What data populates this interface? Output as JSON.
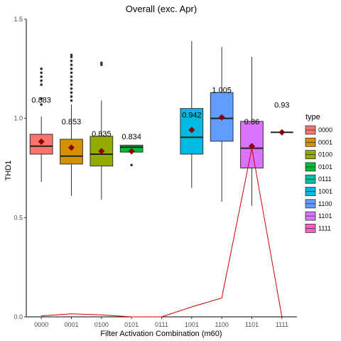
{
  "chart_data": {
    "type": "box",
    "title": "Overall (exc. Apr)",
    "xlabel": "Filter Activation Combination (m60)",
    "ylabel": "THD1",
    "ylim": [
      0,
      1.5
    ],
    "yticks": [
      "0.0",
      "0.5",
      "1.0",
      "1.5"
    ],
    "grid": false,
    "legend": {
      "title": "type",
      "position": "right"
    },
    "categories": [
      "0000",
      "0001",
      "0100",
      "0101",
      "0111",
      "1001",
      "1100",
      "1101",
      "1111"
    ],
    "boxes": [
      {
        "name": "0000",
        "color": "#F8766D",
        "q1": 0.82,
        "median": 0.86,
        "q3": 0.92,
        "whisker_low": 0.68,
        "whisker_high": 1.01,
        "mean": 0.883,
        "mean_label": "0.883",
        "outliers": [
          1.07,
          1.1,
          1.17,
          1.19,
          1.21,
          1.23,
          1.25
        ]
      },
      {
        "name": "0001",
        "color": "#D39200",
        "q1": 0.77,
        "median": 0.81,
        "q3": 0.895,
        "whisker_low": 0.61,
        "whisker_high": 1.07,
        "mean": 0.853,
        "mean_label": "0.853",
        "outliers": [
          1.09,
          1.11,
          1.13,
          1.15,
          1.17,
          1.19,
          1.21,
          1.23,
          1.25,
          1.27,
          1.29,
          1.31,
          1.32
        ]
      },
      {
        "name": "0100",
        "color": "#93AA00",
        "q1": 0.76,
        "median": 0.82,
        "q3": 0.91,
        "whisker_low": 0.59,
        "whisker_high": 1.09,
        "mean": 0.835,
        "mean_label": "0.835",
        "outliers": [
          1.27,
          1.28
        ]
      },
      {
        "name": "0101",
        "color": "#00BA38",
        "q1": 0.83,
        "median": 0.855,
        "q3": 0.865,
        "whisker_low": 0.83,
        "whisker_high": 0.865,
        "mean": 0.834,
        "mean_label": "0.834",
        "outliers": [
          0.765
        ]
      },
      {
        "name": "0111",
        "color": "#00C19F",
        "empty": true
      },
      {
        "name": "1001",
        "color": "#00B9E3",
        "q1": 0.82,
        "median": 0.905,
        "q3": 1.05,
        "whisker_low": 0.65,
        "whisker_high": 1.39,
        "mean": 0.942,
        "mean_label": "0.942",
        "outliers": []
      },
      {
        "name": "1100",
        "color": "#619CFF",
        "q1": 0.885,
        "median": 1.0,
        "q3": 1.13,
        "whisker_low": 0.58,
        "whisker_high": 1.36,
        "mean": 1.005,
        "mean_label": "1.005",
        "outliers": []
      },
      {
        "name": "1101",
        "color": "#DB72FB",
        "q1": 0.75,
        "median": 0.85,
        "q3": 0.985,
        "whisker_low": 0.56,
        "whisker_high": 1.31,
        "mean": 0.86,
        "mean_label": "0.86",
        "outliers": []
      },
      {
        "name": "1111",
        "color": "#FF61C3",
        "q1": 0.93,
        "median": 0.93,
        "q3": 0.93,
        "whisker_low": 0.93,
        "whisker_high": 0.93,
        "mean": 0.93,
        "mean_label": "0.93",
        "outliers": []
      }
    ],
    "red_line": {
      "color": "#CC0000",
      "x": [
        "0000",
        "0001",
        "0100",
        "0101",
        "0111",
        "1001",
        "1100",
        "1101",
        "1111"
      ],
      "values": [
        0.005,
        0.015,
        0.01,
        0.0,
        0.0,
        0.05,
        0.095,
        0.85,
        0.0
      ]
    },
    "outlier_color": "#333333",
    "mean_marker_color": "#8B0000"
  }
}
